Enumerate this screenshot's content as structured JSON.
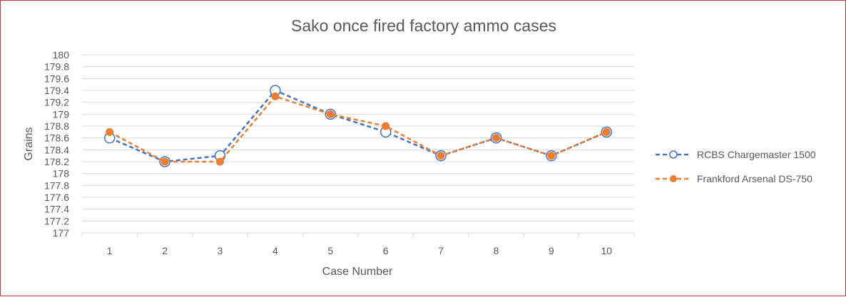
{
  "chart_data": {
    "type": "line",
    "title": "Sako once fired factory ammo cases",
    "xlabel": "Case Number",
    "ylabel": "Grains",
    "categories": [
      "1",
      "2",
      "3",
      "4",
      "5",
      "6",
      "7",
      "8",
      "9",
      "10"
    ],
    "ylim": [
      177,
      180
    ],
    "yticks": [
      "177",
      "177.2",
      "177.4",
      "177.6",
      "177.8",
      "178",
      "178.2",
      "178.4",
      "178.6",
      "178.8",
      "179",
      "179.2",
      "179.4",
      "179.6",
      "179.8",
      "180"
    ],
    "grid": true,
    "legend_position": "right",
    "series": [
      {
        "name": "RCBS Chargemaster 1500",
        "color": "#4472c4",
        "marker": "open-circle",
        "line_style": "dashed",
        "values": [
          178.6,
          178.2,
          178.3,
          179.4,
          179.0,
          178.7,
          178.3,
          178.6,
          178.3,
          178.7
        ]
      },
      {
        "name": "Frankford Arsenal DS-750",
        "color": "#ed7d31",
        "marker": "filled-circle",
        "line_style": "dashed",
        "values": [
          178.7,
          178.2,
          178.2,
          179.3,
          179.0,
          178.8,
          178.3,
          178.6,
          178.3,
          178.7
        ]
      }
    ]
  }
}
